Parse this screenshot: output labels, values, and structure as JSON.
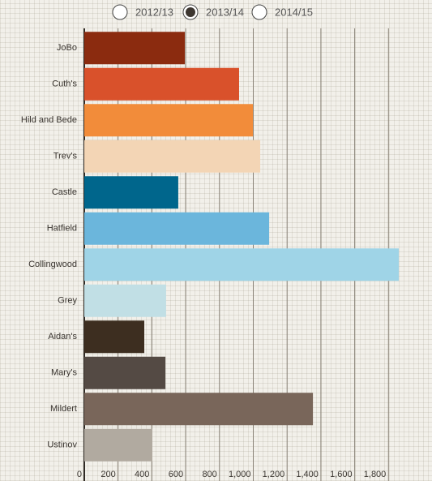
{
  "chart_data": {
    "type": "bar",
    "orientation": "horizontal",
    "legend": {
      "options": [
        "2012/13",
        "2013/14",
        "2014/15"
      ],
      "selected": 1
    },
    "categories": [
      "JoBo",
      "Cuth's",
      "Hild and Bede",
      "Trev's",
      "Castle",
      "Hatfield",
      "Collingwood",
      "Grey",
      "Aidan's",
      "Mary's",
      "Mildert",
      "Ustinov"
    ],
    "values": [
      595,
      916,
      998,
      1041,
      556,
      1094,
      1861,
      484,
      355,
      480,
      1353,
      403
    ],
    "colors": [
      "#8b2b0f",
      "#d9512b",
      "#f28c3a",
      "#f3d5b5",
      "#00668c",
      "#6bb6dc",
      "#9fd4e7",
      "#c1dfe5",
      "#3d2e20",
      "#544a44",
      "#79665a",
      "#b1aaa0"
    ],
    "xlim": [
      0,
      2000
    ],
    "xticks": [
      0,
      200,
      400,
      600,
      800,
      {
        "value": 1000,
        "label": "1,000"
      },
      {
        "value": 1200,
        "label": "1,200"
      },
      {
        "value": 1400,
        "label": "1,400"
      },
      {
        "value": 1600,
        "label": "1,600"
      },
      {
        "value": 1800,
        "label": "1,800"
      }
    ],
    "grid": true
  }
}
